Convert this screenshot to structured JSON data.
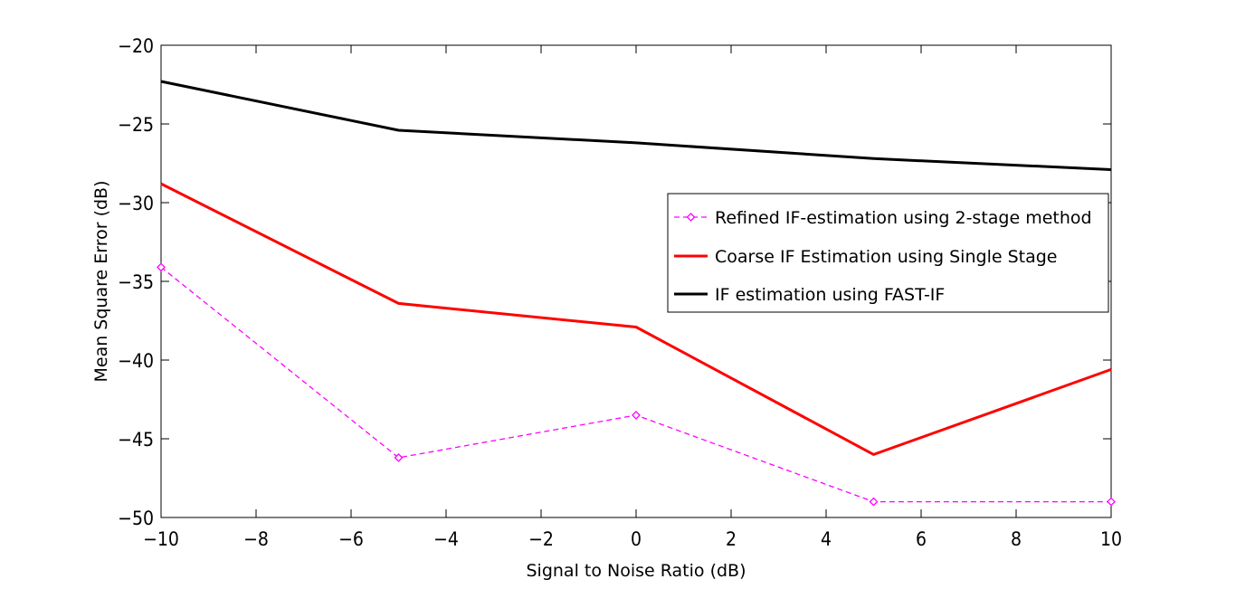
{
  "chart_data": {
    "type": "line",
    "title": "",
    "xlabel": "Signal to Noise Ratio (dB)",
    "ylabel": "Mean Square Error (dB)",
    "xlim": [
      -10,
      10
    ],
    "ylim": [
      -50,
      -20
    ],
    "xticks": [
      -10,
      -8,
      -6,
      -4,
      -2,
      0,
      2,
      4,
      6,
      8,
      10
    ],
    "yticks": [
      -20,
      -25,
      -30,
      -35,
      -40,
      -45,
      -50
    ],
    "grid": false,
    "legend_position": "right",
    "x": [
      -10,
      -5,
      0,
      5,
      10
    ],
    "series": [
      {
        "name": "Refined IF-estimation using 2-stage method",
        "values": [
          -34.1,
          -46.2,
          -43.5,
          -49.0,
          -49.0
        ],
        "color": "#ff00ff",
        "style": "dashed",
        "marker": "diamond"
      },
      {
        "name": "Coarse IF Estimation using Single Stage",
        "values": [
          -28.8,
          -36.4,
          -37.9,
          -46.0,
          -40.6
        ],
        "color": "#ff0000",
        "style": "solid",
        "marker": "none"
      },
      {
        "name": "IF estimation using FAST-IF",
        "values": [
          -22.3,
          -25.4,
          -26.2,
          -27.2,
          -27.9
        ],
        "color": "#000000",
        "style": "solid",
        "marker": "none"
      }
    ]
  }
}
